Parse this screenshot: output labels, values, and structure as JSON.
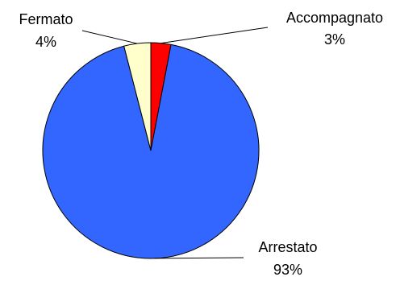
{
  "chart_data": {
    "type": "pie",
    "slices": [
      {
        "label": "Accompagnato",
        "percent_label": "3%",
        "value": 3,
        "color": "#ff0000"
      },
      {
        "label": "Arrestato",
        "percent_label": "93%",
        "value": 93,
        "color": "#3366ff"
      },
      {
        "label": "Fermato",
        "percent_label": "4%",
        "value": 4,
        "color": "#ffffcc"
      }
    ],
    "start_angle_deg": 0,
    "direction": "clockwise",
    "legend": "none"
  }
}
